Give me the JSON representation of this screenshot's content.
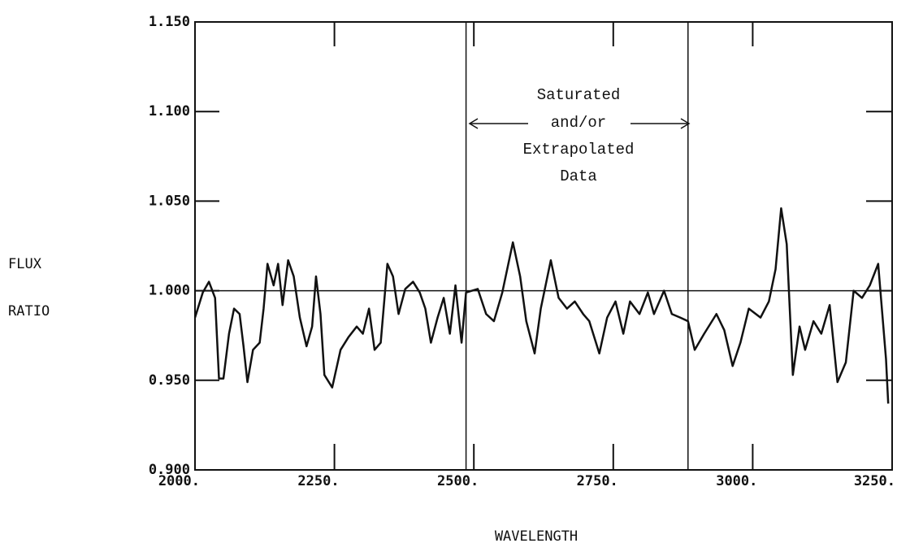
{
  "chart_data": {
    "type": "line",
    "xlabel": "WAVELENGTH",
    "ylabel": [
      "FLUX",
      "RATIO"
    ],
    "annotation": [
      "Saturated",
      "and/or",
      "Extrapolated",
      "Data"
    ],
    "xlim": [
      2000,
      3250
    ],
    "ylim": [
      0.9,
      1.15
    ],
    "xticks": [
      {
        "value": 2000,
        "label": "2000."
      },
      {
        "value": 2250,
        "label": "2250."
      },
      {
        "value": 2500,
        "label": "2500."
      },
      {
        "value": 2750,
        "label": "2750."
      },
      {
        "value": 3000,
        "label": "3000."
      },
      {
        "value": 3250,
        "label": "3250."
      }
    ],
    "yticks": [
      {
        "value": 0.9,
        "label": "0.900"
      },
      {
        "value": 0.95,
        "label": "0.950"
      },
      {
        "value": 1.0,
        "label": "1.000"
      },
      {
        "value": 1.05,
        "label": "1.050"
      },
      {
        "value": 1.1,
        "label": "1.100"
      },
      {
        "value": 1.15,
        "label": "1.150"
      }
    ],
    "hline": 1.0,
    "vlines": [
      2486,
      2884
    ],
    "series": [
      {
        "color": "#111111",
        "x": [
          2000,
          2014,
          2025,
          2036,
          2043,
          2051,
          2061,
          2070,
          2080,
          2087,
          2094,
          2104,
          2116,
          2123,
          2130,
          2141,
          2149,
          2157,
          2167,
          2177,
          2188,
          2200,
          2210,
          2217,
          2225,
          2232,
          2246,
          2261,
          2275,
          2290,
          2301,
          2312,
          2322,
          2333,
          2345,
          2355,
          2365,
          2377,
          2391,
          2403,
          2413,
          2423,
          2435,
          2446,
          2457,
          2467,
          2478,
          2486,
          2507,
          2522,
          2536,
          2551,
          2570,
          2583,
          2594,
          2609,
          2620,
          2638,
          2652,
          2667,
          2681,
          2696,
          2707,
          2725,
          2739,
          2754,
          2768,
          2780,
          2797,
          2812,
          2823,
          2841,
          2855,
          2870,
          2884,
          2896,
          2913,
          2935,
          2949,
          2964,
          2978,
          2993,
          3014,
          3029,
          3041,
          3051,
          3061,
          3072,
          3084,
          3094,
          3109,
          3123,
          3138,
          3152,
          3167,
          3181,
          3196,
          3210,
          3225,
          3239,
          3243
        ],
        "values": [
          0.985,
          0.999,
          1.005,
          0.996,
          0.951,
          0.951,
          0.976,
          0.99,
          0.987,
          0.969,
          0.949,
          0.967,
          0.971,
          0.99,
          1.015,
          1.003,
          1.015,
          0.992,
          1.017,
          1.008,
          0.985,
          0.969,
          0.98,
          1.008,
          0.987,
          0.953,
          0.946,
          0.967,
          0.974,
          0.98,
          0.976,
          0.99,
          0.967,
          0.971,
          1.015,
          1.008,
          0.987,
          1.001,
          1.005,
          0.999,
          0.99,
          0.971,
          0.985,
          0.996,
          0.976,
          1.003,
          0.971,
          0.999,
          1.001,
          0.987,
          0.983,
          0.999,
          1.027,
          1.008,
          0.983,
          0.965,
          0.99,
          1.017,
          0.996,
          0.99,
          0.994,
          0.987,
          0.983,
          0.965,
          0.985,
          0.994,
          0.976,
          0.994,
          0.987,
          0.999,
          0.987,
          1.0,
          0.987,
          0.985,
          0.983,
          0.967,
          0.976,
          0.987,
          0.978,
          0.958,
          0.971,
          0.99,
          0.985,
          0.994,
          1.012,
          1.046,
          1.026,
          0.953,
          0.98,
          0.967,
          0.983,
          0.976,
          0.992,
          0.949,
          0.96,
          1.0,
          0.996,
          1.003,
          1.015,
          0.962,
          0.937
        ]
      }
    ]
  }
}
